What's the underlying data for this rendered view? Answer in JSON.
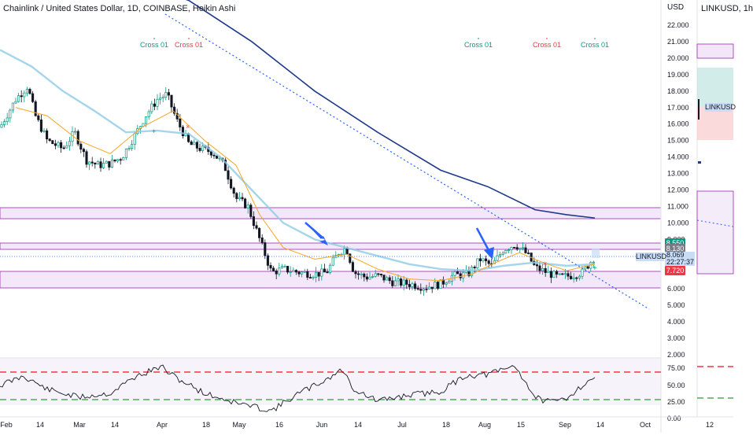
{
  "header": {
    "title": "Chainlink / United States Dollar, 1D, COINBASE, Heikin Ashi"
  },
  "side_panel": {
    "title": "LINKUSD, 1h",
    "tag": "LINKUSD"
  },
  "axis": {
    "currency": "USD",
    "price_ticks": [
      "22.000",
      "21.000",
      "20.000",
      "19.000",
      "18.000",
      "17.000",
      "16.000",
      "15.000",
      "14.000",
      "13.000",
      "12.000",
      "11.000",
      "10.000",
      "9.000",
      "8.000",
      "7.000",
      "6.000",
      "5.000",
      "4.000",
      "3.000",
      "2.000"
    ],
    "rsi_ticks": [
      "75.00",
      "50.00",
      "25.00",
      "0.00"
    ],
    "time_ticks": [
      "Feb",
      "14",
      "Mar",
      "14",
      "Apr",
      "18",
      "May",
      "16",
      "Jun",
      "14",
      "Jul",
      "18",
      "Aug",
      "15",
      "Sep",
      "14",
      "Oct"
    ],
    "side_time_tick": "12"
  },
  "price_tags": {
    "high": {
      "label": "8.550",
      "color": "#089981"
    },
    "mid": {
      "label": "8.130",
      "color": "#787b86"
    },
    "low": {
      "label": "7.720",
      "color": "#f23645"
    },
    "current": {
      "price": "8.069",
      "countdown": "22:27:37",
      "symbol": "LINKUSD"
    }
  },
  "annotations": [
    {
      "label": "Cross 01",
      "color": "#089981"
    },
    {
      "label": "Cross 01",
      "color": "#f23645"
    },
    {
      "label": "Cross 01",
      "color": "#089981"
    },
    {
      "label": "Cross 01",
      "color": "#f23645"
    },
    {
      "label": "Cross 01",
      "color": "#089981"
    }
  ],
  "colors": {
    "bull": "#089981",
    "bear": "#131722",
    "ma200": "#1e3a8a",
    "zone": "#e9d5f5",
    "zone_border": "#9c27b0",
    "rsi_upper": "#f23645",
    "rsi_lower": "#4caf50"
  }
}
